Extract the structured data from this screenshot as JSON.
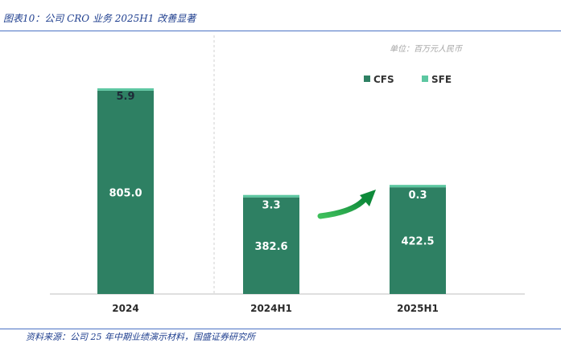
{
  "figure": {
    "title": "图表10：公司 CRO 业务 2025H1 改善显著",
    "source": "资料来源：公司 25 年中期业绩演示材料，国盛证券研究所"
  },
  "chart_data": {
    "type": "bar",
    "stacked": true,
    "unit": "单位：百万元人民币",
    "categories": [
      "2024",
      "2024H1",
      "2025H1"
    ],
    "series": [
      {
        "name": "CFS",
        "values": [
          805.0,
          382.6,
          422.5
        ],
        "color": "#2e8063"
      },
      {
        "name": "SFE",
        "values": [
          5.9,
          3.3,
          0.3
        ],
        "color": "#5cc7a1"
      }
    ],
    "labels": {
      "CFS": [
        "805.0",
        "382.6",
        "422.5"
      ],
      "SFE": [
        "5.9",
        "3.3",
        "0.3"
      ]
    },
    "ylim": [
      0,
      811
    ],
    "legend": "top-right",
    "annotation": "green-upward-arrow",
    "grid": false
  }
}
